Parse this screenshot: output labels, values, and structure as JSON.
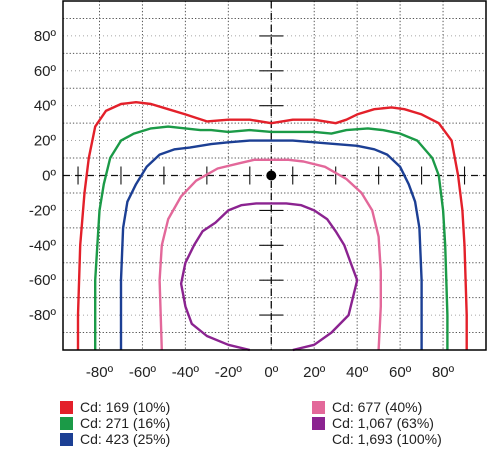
{
  "chart_data": {
    "type": "line",
    "xlim": [
      -97,
      100
    ],
    "ylim": [
      -100,
      100
    ],
    "x_ticks": [
      "-80º",
      "-60º",
      "-40º",
      "-20º",
      "0º",
      "20º",
      "40º",
      "60º",
      "80º"
    ],
    "x_tick_values": [
      -80,
      -60,
      -40,
      -20,
      0,
      20,
      40,
      60,
      80
    ],
    "y_ticks": [
      "80º",
      "60º",
      "40º",
      "20º",
      "0º",
      "-20º",
      "-40º",
      "-60º",
      "-80º"
    ],
    "y_tick_values": [
      80,
      60,
      40,
      20,
      0,
      -20,
      -40,
      -60,
      -80
    ],
    "grid": true,
    "center_marker": [
      0,
      0
    ],
    "series": [
      {
        "name": "Cd: 169 (10%)",
        "color": "#e3202a",
        "points": [
          [
            -90,
            -100
          ],
          [
            -90,
            -80
          ],
          [
            -89,
            -40
          ],
          [
            -87,
            -10
          ],
          [
            -85,
            10
          ],
          [
            -82,
            28
          ],
          [
            -77,
            37
          ],
          [
            -70,
            41
          ],
          [
            -63,
            42
          ],
          [
            -56,
            41
          ],
          [
            -48,
            38
          ],
          [
            -40,
            35
          ],
          [
            -35,
            33
          ],
          [
            -30,
            31
          ],
          [
            -20,
            32
          ],
          [
            -10,
            32
          ],
          [
            0,
            30
          ],
          [
            10,
            32
          ],
          [
            20,
            32
          ],
          [
            30,
            30
          ],
          [
            35,
            32
          ],
          [
            40,
            35
          ],
          [
            48,
            38
          ],
          [
            56,
            39
          ],
          [
            62,
            38
          ],
          [
            70,
            35
          ],
          [
            78,
            30
          ],
          [
            84,
            20
          ],
          [
            87,
            0
          ],
          [
            89,
            -20
          ],
          [
            90,
            -40
          ],
          [
            91,
            -80
          ],
          [
            91,
            -100
          ]
        ]
      },
      {
        "name": "Cd: 271 (16%)",
        "color": "#1b9a47",
        "points": [
          [
            -82,
            -100
          ],
          [
            -82,
            -60
          ],
          [
            -80,
            -20
          ],
          [
            -78,
            -5
          ],
          [
            -75,
            10
          ],
          [
            -70,
            20
          ],
          [
            -64,
            24
          ],
          [
            -56,
            27
          ],
          [
            -48,
            28
          ],
          [
            -40,
            27
          ],
          [
            -33,
            26
          ],
          [
            -28,
            26
          ],
          [
            -20,
            25
          ],
          [
            -10,
            26
          ],
          [
            0,
            25
          ],
          [
            10,
            25
          ],
          [
            20,
            25
          ],
          [
            28,
            24
          ],
          [
            35,
            26
          ],
          [
            45,
            27
          ],
          [
            52,
            26
          ],
          [
            60,
            24
          ],
          [
            68,
            20
          ],
          [
            75,
            10
          ],
          [
            78,
            0
          ],
          [
            80,
            -20
          ],
          [
            81,
            -40
          ],
          [
            82,
            -80
          ],
          [
            82,
            -100
          ]
        ]
      },
      {
        "name": "Cd: 423 (25%)",
        "color": "#1c3f94",
        "points": [
          [
            -70,
            -100
          ],
          [
            -70,
            -60
          ],
          [
            -69,
            -30
          ],
          [
            -67,
            -15
          ],
          [
            -63,
            -5
          ],
          [
            -58,
            5
          ],
          [
            -52,
            12
          ],
          [
            -45,
            15
          ],
          [
            -38,
            16
          ],
          [
            -28,
            18
          ],
          [
            -20,
            19
          ],
          [
            -10,
            20
          ],
          [
            0,
            20
          ],
          [
            10,
            20
          ],
          [
            20,
            19
          ],
          [
            30,
            18
          ],
          [
            40,
            17
          ],
          [
            48,
            15
          ],
          [
            54,
            12
          ],
          [
            60,
            5
          ],
          [
            64,
            -5
          ],
          [
            67,
            -15
          ],
          [
            69,
            -30
          ],
          [
            70,
            -60
          ],
          [
            70,
            -100
          ]
        ]
      },
      {
        "name": "Cd: 677 (40%)",
        "color": "#e3689a",
        "points": [
          [
            -51,
            -100
          ],
          [
            -52,
            -60
          ],
          [
            -51,
            -40
          ],
          [
            -48,
            -25
          ],
          [
            -42,
            -12
          ],
          [
            -35,
            -3
          ],
          [
            -25,
            4
          ],
          [
            -15,
            7
          ],
          [
            -8,
            9
          ],
          [
            0,
            9
          ],
          [
            8,
            9
          ],
          [
            15,
            8
          ],
          [
            25,
            5
          ],
          [
            35,
            -2
          ],
          [
            42,
            -10
          ],
          [
            47,
            -20
          ],
          [
            50,
            -35
          ],
          [
            51,
            -55
          ],
          [
            51,
            -75
          ],
          [
            50,
            -100
          ]
        ]
      },
      {
        "name": "Cd: 1,067 (63%)",
        "color": "#8b2390",
        "points": [
          [
            -10,
            -100
          ],
          [
            -20,
            -97
          ],
          [
            -30,
            -92
          ],
          [
            -37,
            -85
          ],
          [
            -40,
            -75
          ],
          [
            -42,
            -62
          ],
          [
            -40,
            -50
          ],
          [
            -36,
            -40
          ],
          [
            -32,
            -32
          ],
          [
            -26,
            -27
          ],
          [
            -20,
            -20
          ],
          [
            -14,
            -17
          ],
          [
            -7,
            -16
          ],
          [
            0,
            -16
          ],
          [
            7,
            -16
          ],
          [
            14,
            -17
          ],
          [
            20,
            -20
          ],
          [
            26,
            -25
          ],
          [
            30,
            -32
          ],
          [
            34,
            -40
          ],
          [
            37,
            -50
          ],
          [
            40,
            -60
          ],
          [
            38,
            -70
          ],
          [
            36,
            -80
          ],
          [
            28,
            -90
          ],
          [
            20,
            -97
          ],
          [
            10,
            -100
          ]
        ]
      }
    ],
    "legend_extra": "Cd: 1,693 (100%)"
  },
  "legend": {
    "left": [
      {
        "label": "Cd: 169 (10%)",
        "color": "#e3202a"
      },
      {
        "label": "Cd: 271 (16%)",
        "color": "#1b9a47"
      },
      {
        "label": "Cd: 423 (25%)",
        "color": "#1c3f94"
      }
    ],
    "right": [
      {
        "label": "Cd: 677 (40%)",
        "color": "#e3689a"
      },
      {
        "label": "Cd: 1,067 (63%)",
        "color": "#8b2390"
      },
      {
        "label": "Cd: 1,693 (100%)",
        "color": ""
      }
    ]
  }
}
